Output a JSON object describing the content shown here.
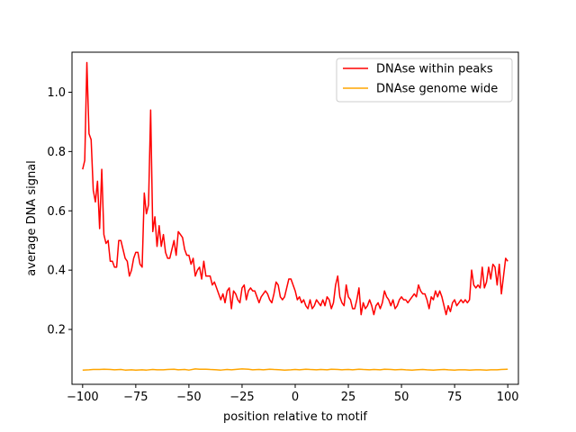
{
  "chart_data": {
    "type": "line",
    "xlabel": "position relative to motif",
    "ylabel": "average DNA signal",
    "xlim": [
      -105,
      105
    ],
    "ylim": [
      0.015,
      1.135
    ],
    "xticks": [
      -100,
      -75,
      -50,
      -25,
      0,
      25,
      50,
      75,
      100
    ],
    "yticks": [
      0.2,
      0.4,
      0.6,
      0.8,
      1.0
    ],
    "ytick_labels": [
      "0.2",
      "0.4",
      "0.6",
      "0.8",
      "1.0"
    ],
    "grid": false,
    "legend_position": "top-right",
    "series": [
      {
        "name": "DNAse within peaks",
        "color": "#ff0000",
        "points": [
          [
            -100,
            0.74
          ],
          [
            -99,
            0.77
          ],
          [
            -98,
            1.1
          ],
          [
            -97,
            0.86
          ],
          [
            -96,
            0.84
          ],
          [
            -95,
            0.67
          ],
          [
            -94,
            0.63
          ],
          [
            -93,
            0.7
          ],
          [
            -92,
            0.54
          ],
          [
            -91,
            0.74
          ],
          [
            -90,
            0.52
          ],
          [
            -89,
            0.49
          ],
          [
            -88,
            0.5
          ],
          [
            -87,
            0.43
          ],
          [
            -86,
            0.43
          ],
          [
            -85,
            0.41
          ],
          [
            -84,
            0.41
          ],
          [
            -83,
            0.5
          ],
          [
            -82,
            0.5
          ],
          [
            -81,
            0.47
          ],
          [
            -80,
            0.44
          ],
          [
            -79,
            0.43
          ],
          [
            -78,
            0.38
          ],
          [
            -77,
            0.4
          ],
          [
            -76,
            0.44
          ],
          [
            -75,
            0.46
          ],
          [
            -74,
            0.46
          ],
          [
            -73,
            0.42
          ],
          [
            -72,
            0.41
          ],
          [
            -71,
            0.66
          ],
          [
            -70,
            0.59
          ],
          [
            -69,
            0.62
          ],
          [
            -68,
            0.94
          ],
          [
            -67,
            0.53
          ],
          [
            -66,
            0.58
          ],
          [
            -65,
            0.48
          ],
          [
            -64,
            0.55
          ],
          [
            -63,
            0.48
          ],
          [
            -62,
            0.52
          ],
          [
            -61,
            0.46
          ],
          [
            -60,
            0.44
          ],
          [
            -59,
            0.44
          ],
          [
            -58,
            0.47
          ],
          [
            -57,
            0.5
          ],
          [
            -56,
            0.45
          ],
          [
            -55,
            0.53
          ],
          [
            -54,
            0.52
          ],
          [
            -53,
            0.51
          ],
          [
            -52,
            0.47
          ],
          [
            -51,
            0.45
          ],
          [
            -50,
            0.45
          ],
          [
            -49,
            0.42
          ],
          [
            -48,
            0.44
          ],
          [
            -47,
            0.38
          ],
          [
            -46,
            0.4
          ],
          [
            -45,
            0.41
          ],
          [
            -44,
            0.37
          ],
          [
            -43,
            0.43
          ],
          [
            -42,
            0.38
          ],
          [
            -41,
            0.38
          ],
          [
            -40,
            0.38
          ],
          [
            -39,
            0.35
          ],
          [
            -38,
            0.36
          ],
          [
            -37,
            0.34
          ],
          [
            -36,
            0.32
          ],
          [
            -35,
            0.3
          ],
          [
            -34,
            0.32
          ],
          [
            -33,
            0.29
          ],
          [
            -32,
            0.33
          ],
          [
            -31,
            0.34
          ],
          [
            -30,
            0.27
          ],
          [
            -29,
            0.33
          ],
          [
            -28,
            0.32
          ],
          [
            -27,
            0.3
          ],
          [
            -26,
            0.29
          ],
          [
            -25,
            0.34
          ],
          [
            -24,
            0.35
          ],
          [
            -23,
            0.3
          ],
          [
            -22,
            0.33
          ],
          [
            -21,
            0.34
          ],
          [
            -20,
            0.33
          ],
          [
            -19,
            0.33
          ],
          [
            -18,
            0.31
          ],
          [
            -17,
            0.29
          ],
          [
            -16,
            0.31
          ],
          [
            -15,
            0.32
          ],
          [
            -14,
            0.33
          ],
          [
            -13,
            0.32
          ],
          [
            -12,
            0.3
          ],
          [
            -11,
            0.29
          ],
          [
            -10,
            0.32
          ],
          [
            -9,
            0.36
          ],
          [
            -8,
            0.35
          ],
          [
            -7,
            0.31
          ],
          [
            -6,
            0.3
          ],
          [
            -5,
            0.31
          ],
          [
            -4,
            0.34
          ],
          [
            -3,
            0.37
          ],
          [
            -2,
            0.37
          ],
          [
            -1,
            0.35
          ],
          [
            0,
            0.33
          ],
          [
            1,
            0.3
          ],
          [
            2,
            0.31
          ],
          [
            3,
            0.29
          ],
          [
            4,
            0.3
          ],
          [
            5,
            0.28
          ],
          [
            6,
            0.27
          ],
          [
            7,
            0.3
          ],
          [
            8,
            0.27
          ],
          [
            9,
            0.28
          ],
          [
            10,
            0.3
          ],
          [
            11,
            0.29
          ],
          [
            12,
            0.28
          ],
          [
            13,
            0.3
          ],
          [
            14,
            0.28
          ],
          [
            15,
            0.31
          ],
          [
            16,
            0.3
          ],
          [
            17,
            0.27
          ],
          [
            18,
            0.29
          ],
          [
            19,
            0.35
          ],
          [
            20,
            0.38
          ],
          [
            21,
            0.31
          ],
          [
            22,
            0.29
          ],
          [
            23,
            0.28
          ],
          [
            24,
            0.35
          ],
          [
            25,
            0.31
          ],
          [
            26,
            0.3
          ],
          [
            27,
            0.27
          ],
          [
            28,
            0.27
          ],
          [
            29,
            0.3
          ],
          [
            30,
            0.34
          ],
          [
            31,
            0.25
          ],
          [
            32,
            0.29
          ],
          [
            33,
            0.27
          ],
          [
            34,
            0.28
          ],
          [
            35,
            0.3
          ],
          [
            36,
            0.28
          ],
          [
            37,
            0.25
          ],
          [
            38,
            0.28
          ],
          [
            39,
            0.29
          ],
          [
            40,
            0.27
          ],
          [
            41,
            0.29
          ],
          [
            42,
            0.33
          ],
          [
            43,
            0.31
          ],
          [
            44,
            0.3
          ],
          [
            45,
            0.28
          ],
          [
            46,
            0.3
          ],
          [
            47,
            0.27
          ],
          [
            48,
            0.28
          ],
          [
            49,
            0.3
          ],
          [
            50,
            0.31
          ],
          [
            51,
            0.3
          ],
          [
            52,
            0.3
          ],
          [
            53,
            0.29
          ],
          [
            54,
            0.3
          ],
          [
            55,
            0.31
          ],
          [
            56,
            0.32
          ],
          [
            57,
            0.31
          ],
          [
            58,
            0.35
          ],
          [
            59,
            0.33
          ],
          [
            60,
            0.32
          ],
          [
            61,
            0.32
          ],
          [
            62,
            0.3
          ],
          [
            63,
            0.27
          ],
          [
            64,
            0.31
          ],
          [
            65,
            0.3
          ],
          [
            66,
            0.33
          ],
          [
            67,
            0.31
          ],
          [
            68,
            0.33
          ],
          [
            69,
            0.31
          ],
          [
            70,
            0.28
          ],
          [
            71,
            0.25
          ],
          [
            72,
            0.28
          ],
          [
            73,
            0.26
          ],
          [
            74,
            0.29
          ],
          [
            75,
            0.3
          ],
          [
            76,
            0.28
          ],
          [
            77,
            0.29
          ],
          [
            78,
            0.3
          ],
          [
            79,
            0.29
          ],
          [
            80,
            0.3
          ],
          [
            81,
            0.29
          ],
          [
            82,
            0.3
          ],
          [
            83,
            0.4
          ],
          [
            84,
            0.35
          ],
          [
            85,
            0.34
          ],
          [
            86,
            0.35
          ],
          [
            87,
            0.34
          ],
          [
            88,
            0.41
          ],
          [
            89,
            0.34
          ],
          [
            90,
            0.36
          ],
          [
            91,
            0.41
          ],
          [
            92,
            0.37
          ],
          [
            93,
            0.42
          ],
          [
            94,
            0.41
          ],
          [
            95,
            0.35
          ],
          [
            96,
            0.42
          ],
          [
            97,
            0.32
          ],
          [
            98,
            0.38
          ],
          [
            99,
            0.44
          ],
          [
            100,
            0.43
          ]
        ]
      },
      {
        "name": "DNAse genome wide",
        "color": "#ffa500",
        "points": [
          [
            -100,
            0.063
          ],
          [
            -97,
            0.064
          ],
          [
            -95,
            0.065
          ],
          [
            -92,
            0.065
          ],
          [
            -90,
            0.066
          ],
          [
            -87,
            0.065
          ],
          [
            -85,
            0.064
          ],
          [
            -82,
            0.065
          ],
          [
            -80,
            0.063
          ],
          [
            -77,
            0.064
          ],
          [
            -75,
            0.063
          ],
          [
            -72,
            0.064
          ],
          [
            -70,
            0.063
          ],
          [
            -67,
            0.065
          ],
          [
            -65,
            0.064
          ],
          [
            -62,
            0.064
          ],
          [
            -60,
            0.065
          ],
          [
            -57,
            0.066
          ],
          [
            -55,
            0.064
          ],
          [
            -52,
            0.065
          ],
          [
            -50,
            0.063
          ],
          [
            -47,
            0.067
          ],
          [
            -45,
            0.066
          ],
          [
            -42,
            0.066
          ],
          [
            -40,
            0.065
          ],
          [
            -37,
            0.064
          ],
          [
            -35,
            0.063
          ],
          [
            -32,
            0.065
          ],
          [
            -30,
            0.064
          ],
          [
            -27,
            0.066
          ],
          [
            -25,
            0.067
          ],
          [
            -22,
            0.066
          ],
          [
            -20,
            0.064
          ],
          [
            -17,
            0.065
          ],
          [
            -15,
            0.064
          ],
          [
            -12,
            0.066
          ],
          [
            -10,
            0.065
          ],
          [
            -7,
            0.064
          ],
          [
            -5,
            0.063
          ],
          [
            -2,
            0.064
          ],
          [
            0,
            0.065
          ],
          [
            2,
            0.064
          ],
          [
            5,
            0.066
          ],
          [
            7,
            0.065
          ],
          [
            10,
            0.064
          ],
          [
            12,
            0.065
          ],
          [
            15,
            0.064
          ],
          [
            17,
            0.066
          ],
          [
            20,
            0.065
          ],
          [
            22,
            0.064
          ],
          [
            25,
            0.065
          ],
          [
            27,
            0.064
          ],
          [
            30,
            0.066
          ],
          [
            32,
            0.065
          ],
          [
            35,
            0.064
          ],
          [
            37,
            0.065
          ],
          [
            40,
            0.064
          ],
          [
            42,
            0.066
          ],
          [
            45,
            0.065
          ],
          [
            47,
            0.064
          ],
          [
            50,
            0.065
          ],
          [
            52,
            0.064
          ],
          [
            55,
            0.063
          ],
          [
            57,
            0.064
          ],
          [
            60,
            0.065
          ],
          [
            62,
            0.064
          ],
          [
            65,
            0.063
          ],
          [
            67,
            0.064
          ],
          [
            70,
            0.065
          ],
          [
            72,
            0.064
          ],
          [
            75,
            0.063
          ],
          [
            77,
            0.064
          ],
          [
            80,
            0.064
          ],
          [
            82,
            0.063
          ],
          [
            85,
            0.064
          ],
          [
            87,
            0.064
          ],
          [
            90,
            0.063
          ],
          [
            92,
            0.064
          ],
          [
            95,
            0.064
          ],
          [
            97,
            0.065
          ],
          [
            100,
            0.066
          ]
        ]
      }
    ]
  }
}
